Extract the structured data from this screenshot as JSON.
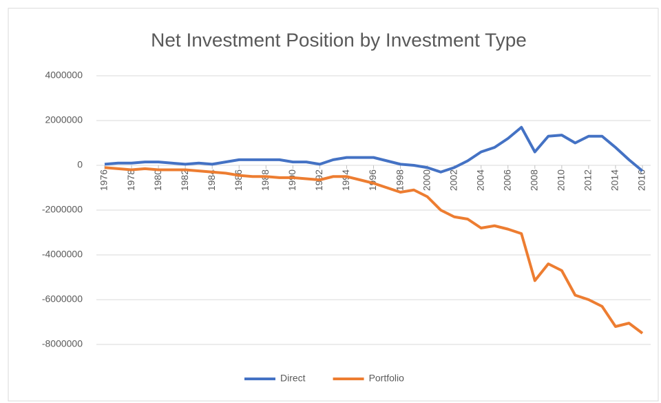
{
  "chart_data": {
    "type": "line",
    "title": "Net Investment Position by Investment Type",
    "x": [
      1976,
      1977,
      1978,
      1979,
      1980,
      1981,
      1982,
      1983,
      1984,
      1985,
      1986,
      1987,
      1988,
      1989,
      1990,
      1991,
      1992,
      1993,
      1994,
      1995,
      1996,
      1997,
      1998,
      1999,
      2000,
      2001,
      2002,
      2003,
      2004,
      2005,
      2006,
      2007,
      2008,
      2009,
      2010,
      2011,
      2012,
      2013,
      2014,
      2015,
      2016
    ],
    "xlim": [
      1976,
      2016
    ],
    "xticks": [
      1976,
      1978,
      1980,
      1982,
      1984,
      1986,
      1988,
      1990,
      1992,
      1994,
      1996,
      1998,
      2000,
      2002,
      2004,
      2006,
      2008,
      2010,
      2012,
      2014,
      2016
    ],
    "ylim": [
      -8000000,
      4000000
    ],
    "yticks": [
      -8000000,
      -6000000,
      -4000000,
      -2000000,
      0,
      2000000,
      4000000
    ],
    "grid": true,
    "legend": "bottom",
    "series": [
      {
        "name": "Direct",
        "color": "#4472c4",
        "values": [
          50000,
          100000,
          100000,
          150000,
          150000,
          100000,
          50000,
          100000,
          50000,
          150000,
          250000,
          250000,
          250000,
          250000,
          150000,
          150000,
          50000,
          250000,
          350000,
          350000,
          350000,
          200000,
          50000,
          0,
          -100000,
          -300000,
          -100000,
          200000,
          600000,
          800000,
          1200000,
          1700000,
          600000,
          1300000,
          1350000,
          1000000,
          1300000,
          1300000,
          800000,
          250000,
          -250000
        ]
      },
      {
        "name": "Portfolio",
        "color": "#ed7d31",
        "values": [
          -100000,
          -150000,
          -200000,
          -150000,
          -200000,
          -200000,
          -200000,
          -250000,
          -300000,
          -350000,
          -450000,
          -500000,
          -500000,
          -550000,
          -550000,
          -600000,
          -650000,
          -500000,
          -500000,
          -650000,
          -800000,
          -1000000,
          -1200000,
          -1100000,
          -1400000,
          -2000000,
          -2300000,
          -2400000,
          -2800000,
          -2700000,
          -2850000,
          -3050000,
          -5150000,
          -4400000,
          -4700000,
          -5800000,
          -6000000,
          -6300000,
          -7200000,
          -7050000,
          -7500000
        ]
      }
    ]
  }
}
